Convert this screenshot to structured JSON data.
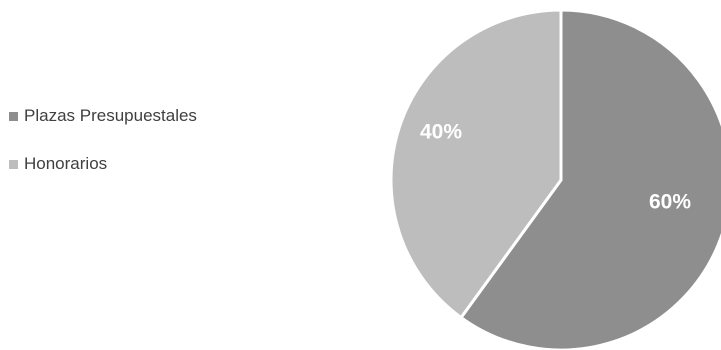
{
  "chart_data": {
    "type": "pie",
    "title": "",
    "legend_position": "left",
    "start_angle_deg": 0,
    "direction": "clockwise",
    "slices": [
      {
        "label": "Plazas Presupuestales",
        "value": 60,
        "display": "60%",
        "color": "#8e8e8e"
      },
      {
        "label": "Honorarios",
        "value": 40,
        "display": "40%",
        "color": "#bdbdbd"
      }
    ]
  }
}
